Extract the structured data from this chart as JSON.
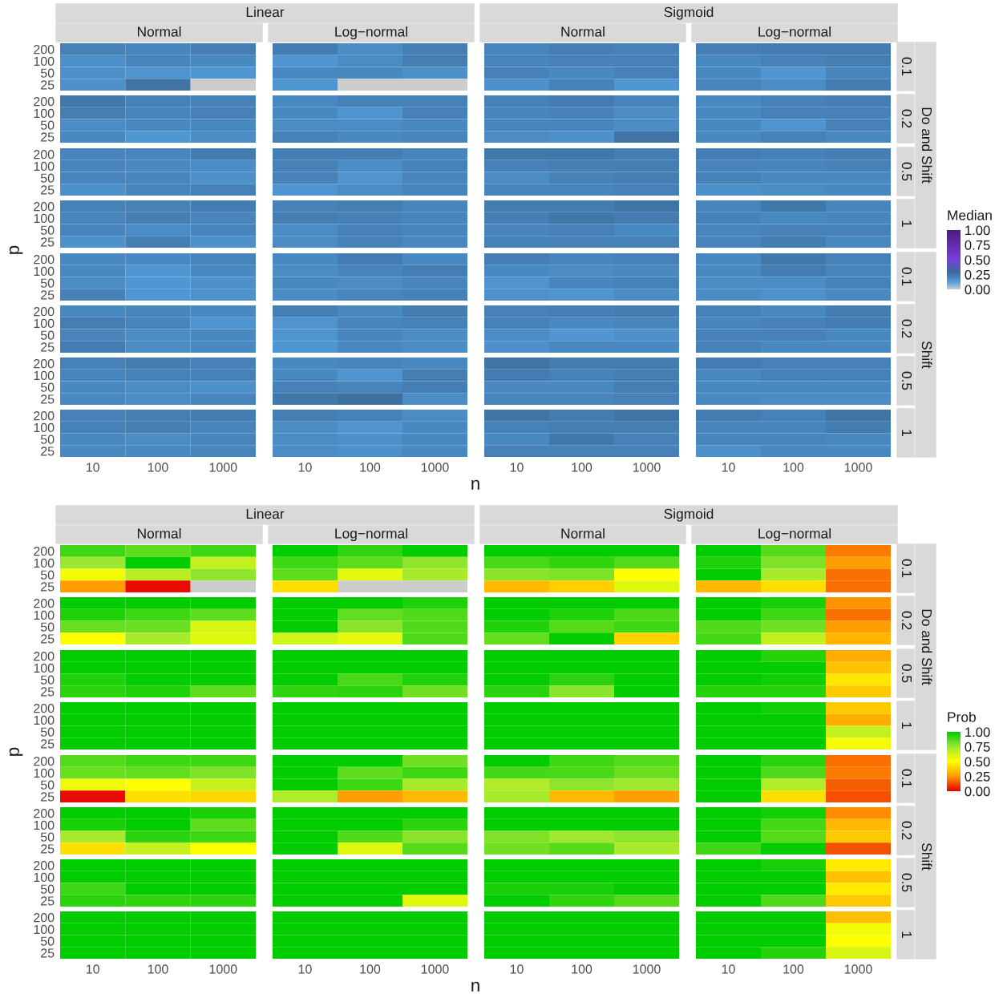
{
  "chart_data": [
    {
      "type": "heatmap",
      "xlabel": "n",
      "ylabel": "p",
      "clabel": "Median",
      "clim": [
        0,
        1
      ],
      "cticks": [
        {
          "value": 0,
          "label": "0.00"
        },
        {
          "value": 0.25,
          "label": "0.25"
        },
        {
          "value": 0.5,
          "label": "0.50"
        },
        {
          "value": 0.75,
          "label": "0.75"
        },
        {
          "value": 1,
          "label": "1.00"
        }
      ],
      "annotations": [
        "Linear",
        "Sigmoid",
        "Normal",
        "Log−normal",
        "Normal",
        "Log−normal",
        "0.1",
        "0.2",
        "0.5",
        "1",
        "0.1",
        "0.2",
        "0.5",
        "1",
        "Do and Shift",
        "Shift"
      ],
      "categories": [
        "10",
        "100",
        "1000",
        "10",
        "100",
        "1000",
        "10",
        "100",
        "1000",
        "10",
        "100",
        "1000"
      ],
      "y_categories": [
        "200",
        "100",
        "50",
        "25",
        "200",
        "100",
        "50",
        "25",
        "200",
        "100",
        "50",
        "25",
        "200",
        "100",
        "50",
        "25",
        "200",
        "100",
        "50",
        "25",
        "200",
        "100",
        "50",
        "25",
        "200",
        "100",
        "50",
        "25",
        "200",
        "100",
        "50",
        "25"
      ],
      "cells": [
        [
          0.21,
          0.2,
          0.22,
          0.23,
          0.18,
          0.22,
          0.2,
          0.22,
          0.21,
          0.22,
          0.23,
          0.23
        ],
        [
          0.17,
          0.2,
          0.19,
          0.15,
          0.18,
          0.22,
          0.2,
          0.21,
          0.21,
          0.19,
          0.21,
          0.22
        ],
        [
          0.17,
          0.16,
          0.15,
          0.19,
          0.19,
          0.17,
          0.21,
          0.19,
          0.21,
          0.19,
          0.15,
          0.2
        ],
        [
          0.17,
          0.25,
          null,
          0.15,
          null,
          null,
          0.17,
          0.21,
          0.15,
          0.2,
          0.18,
          0.23
        ],
        [
          0.24,
          0.21,
          0.21,
          0.19,
          0.21,
          0.21,
          0.21,
          0.23,
          0.2,
          0.19,
          0.21,
          0.22
        ],
        [
          0.22,
          0.2,
          0.21,
          0.19,
          0.16,
          0.21,
          0.2,
          0.21,
          0.18,
          0.19,
          0.21,
          0.21
        ],
        [
          0.18,
          0.19,
          0.19,
          0.18,
          0.18,
          0.19,
          0.2,
          0.2,
          0.18,
          0.19,
          0.16,
          0.21
        ],
        [
          0.19,
          0.15,
          0.18,
          0.21,
          0.19,
          0.2,
          0.18,
          0.17,
          0.25,
          0.19,
          0.21,
          0.19
        ],
        [
          0.2,
          0.2,
          0.23,
          0.22,
          0.22,
          0.2,
          0.24,
          0.24,
          0.22,
          0.22,
          0.21,
          0.22
        ],
        [
          0.2,
          0.19,
          0.18,
          0.21,
          0.18,
          0.21,
          0.21,
          0.22,
          0.22,
          0.2,
          0.2,
          0.21
        ],
        [
          0.2,
          0.2,
          0.17,
          0.21,
          0.16,
          0.2,
          0.18,
          0.21,
          0.22,
          0.21,
          0.19,
          0.19
        ],
        [
          0.17,
          0.2,
          0.21,
          0.16,
          0.18,
          0.2,
          0.2,
          0.2,
          0.21,
          0.17,
          0.18,
          0.19
        ],
        [
          0.21,
          0.21,
          0.23,
          0.21,
          0.22,
          0.2,
          0.23,
          0.23,
          0.25,
          0.2,
          0.24,
          0.2
        ],
        [
          0.2,
          0.22,
          0.2,
          0.22,
          0.21,
          0.2,
          0.22,
          0.24,
          0.23,
          0.21,
          0.19,
          0.2
        ],
        [
          0.2,
          0.18,
          0.2,
          0.18,
          0.21,
          0.2,
          0.2,
          0.21,
          0.19,
          0.2,
          0.21,
          0.21
        ],
        [
          0.17,
          0.22,
          0.17,
          0.18,
          0.21,
          0.19,
          0.21,
          0.21,
          0.21,
          0.2,
          0.23,
          0.19
        ],
        [
          0.19,
          0.19,
          0.2,
          0.19,
          0.23,
          0.19,
          0.22,
          0.2,
          0.21,
          0.19,
          0.24,
          0.21
        ],
        [
          0.19,
          0.15,
          0.19,
          0.18,
          0.2,
          0.22,
          0.19,
          0.18,
          0.19,
          0.19,
          0.23,
          0.2
        ],
        [
          0.18,
          0.15,
          0.17,
          0.19,
          0.18,
          0.2,
          0.16,
          0.2,
          0.21,
          0.18,
          0.18,
          0.21
        ],
        [
          0.21,
          0.15,
          0.17,
          0.18,
          0.2,
          0.21,
          0.17,
          0.16,
          0.18,
          0.18,
          0.17,
          0.19
        ],
        [
          0.19,
          0.2,
          0.19,
          0.22,
          0.19,
          0.23,
          0.21,
          0.22,
          0.23,
          0.21,
          0.19,
          0.23
        ],
        [
          0.22,
          0.2,
          0.16,
          0.16,
          0.2,
          0.21,
          0.21,
          0.19,
          0.2,
          0.2,
          0.21,
          0.23
        ],
        [
          0.2,
          0.18,
          0.19,
          0.16,
          0.2,
          0.18,
          0.18,
          0.15,
          0.17,
          0.21,
          0.21,
          0.19
        ],
        [
          0.23,
          0.18,
          0.19,
          0.15,
          0.19,
          0.18,
          0.17,
          0.19,
          0.19,
          0.21,
          0.19,
          0.19
        ],
        [
          0.21,
          0.23,
          0.21,
          0.19,
          0.2,
          0.19,
          0.25,
          0.23,
          0.23,
          0.23,
          0.21,
          0.21
        ],
        [
          0.2,
          0.21,
          0.21,
          0.19,
          0.16,
          0.22,
          0.23,
          0.21,
          0.22,
          0.19,
          0.21,
          0.21
        ],
        [
          0.19,
          0.18,
          0.17,
          0.21,
          0.2,
          0.22,
          0.19,
          0.19,
          0.22,
          0.19,
          0.19,
          0.19
        ],
        [
          0.19,
          0.18,
          0.2,
          0.24,
          0.26,
          0.18,
          0.2,
          0.2,
          0.21,
          0.19,
          0.18,
          0.18
        ],
        [
          0.21,
          0.22,
          0.23,
          0.22,
          0.21,
          0.18,
          0.25,
          0.23,
          0.25,
          0.23,
          0.21,
          0.25
        ],
        [
          0.21,
          0.22,
          0.2,
          0.18,
          0.16,
          0.19,
          0.21,
          0.22,
          0.22,
          0.2,
          0.2,
          0.23
        ],
        [
          0.19,
          0.18,
          0.2,
          0.18,
          0.17,
          0.19,
          0.19,
          0.24,
          0.21,
          0.2,
          0.2,
          0.19
        ],
        [
          0.19,
          0.19,
          0.2,
          0.18,
          0.17,
          0.19,
          0.21,
          0.21,
          0.21,
          0.17,
          0.19,
          0.19
        ]
      ]
    },
    {
      "type": "heatmap",
      "xlabel": "n",
      "ylabel": "p",
      "clabel": "Prob",
      "clim": [
        0,
        1
      ],
      "cticks": [
        {
          "value": 0,
          "label": "0.00"
        },
        {
          "value": 0.25,
          "label": "0.25"
        },
        {
          "value": 0.5,
          "label": "0.50"
        },
        {
          "value": 0.75,
          "label": "0.75"
        },
        {
          "value": 1,
          "label": "1.00"
        }
      ],
      "annotations": [
        "Linear",
        "Sigmoid",
        "Normal",
        "Log−normal",
        "Normal",
        "Log−normal",
        "0.1",
        "0.2",
        "0.5",
        "1",
        "0.1",
        "0.2",
        "0.5",
        "1",
        "Do and Shift",
        "Shift"
      ],
      "categories": [
        "10",
        "100",
        "1000",
        "10",
        "100",
        "1000",
        "10",
        "100",
        "1000",
        "10",
        "100",
        "1000"
      ],
      "y_categories": [
        "200",
        "100",
        "50",
        "25",
        "200",
        "100",
        "50",
        "25",
        "200",
        "100",
        "50",
        "25",
        "200",
        "100",
        "50",
        "25",
        "200",
        "100",
        "50",
        "25",
        "200",
        "100",
        "50",
        "25",
        "200",
        "100",
        "50",
        "25",
        "200",
        "100",
        "50",
        "25"
      ],
      "cells": [
        [
          0.9,
          0.85,
          0.9,
          1,
          0.92,
          1,
          1,
          1,
          1,
          1,
          0.86,
          0.2
        ],
        [
          0.75,
          1,
          0.65,
          0.9,
          0.85,
          0.77,
          0.88,
          0.92,
          0.86,
          0.95,
          0.8,
          0.26
        ],
        [
          0.53,
          0.68,
          0.77,
          0.85,
          0.57,
          0.72,
          0.78,
          0.8,
          0.5,
          1,
          0.72,
          0.18
        ],
        [
          0.26,
          0.02,
          null,
          0.42,
          null,
          null,
          0.33,
          0.38,
          0.58,
          0.33,
          0.42,
          0.18
        ],
        [
          1,
          1,
          1,
          1,
          1,
          0.95,
          1,
          1,
          1,
          1,
          0.96,
          0.24
        ],
        [
          0.95,
          0.9,
          0.85,
          1,
          0.84,
          0.87,
          1,
          0.95,
          0.88,
          1,
          0.9,
          0.18
        ],
        [
          0.83,
          0.83,
          0.6,
          1,
          0.78,
          0.87,
          0.95,
          0.86,
          0.9,
          0.87,
          0.82,
          0.26
        ],
        [
          0.5,
          0.72,
          0.58,
          0.62,
          0.57,
          0.87,
          0.84,
          1,
          0.38,
          0.89,
          0.66,
          0.32
        ],
        [
          1,
          1,
          1,
          1,
          1,
          1,
          1,
          1,
          1,
          1,
          0.94,
          0.3
        ],
        [
          1,
          1,
          1,
          1,
          1,
          1,
          1,
          1,
          1,
          1,
          1,
          0.35
        ],
        [
          0.95,
          1,
          1,
          1,
          0.88,
          0.95,
          1,
          0.93,
          1,
          1,
          0.97,
          0.44
        ],
        [
          0.93,
          0.95,
          0.85,
          0.92,
          0.93,
          0.82,
          0.93,
          0.78,
          1,
          0.94,
          0.94,
          0.37
        ],
        [
          1,
          1,
          1,
          1,
          1,
          1,
          1,
          1,
          1,
          1,
          0.97,
          0.37
        ],
        [
          1,
          1,
          1,
          1,
          1,
          1,
          1,
          1,
          1,
          1,
          1,
          0.3
        ],
        [
          1,
          1,
          1,
          1,
          1,
          1,
          1,
          1,
          1,
          1,
          1,
          0.65
        ],
        [
          1,
          1,
          1,
          1,
          1,
          1,
          1,
          1,
          1,
          1,
          1,
          0.53
        ],
        [
          0.86,
          0.9,
          0.9,
          1,
          1,
          0.82,
          1,
          0.9,
          0.86,
          1,
          0.93,
          0.18
        ],
        [
          0.83,
          0.84,
          0.8,
          1,
          0.85,
          0.9,
          0.89,
          0.88,
          0.83,
          1,
          0.87,
          0.2
        ],
        [
          0.54,
          0.5,
          0.65,
          1,
          0.9,
          0.72,
          0.7,
          0.77,
          0.74,
          1,
          0.7,
          0.15
        ],
        [
          0.02,
          0.42,
          0.4,
          0.7,
          0.26,
          0.33,
          0.72,
          0.33,
          0.26,
          1,
          0.42,
          0.13
        ],
        [
          1,
          1,
          0.96,
          1,
          1,
          1,
          1,
          1,
          1,
          1,
          0.97,
          0.23
        ],
        [
          0.96,
          1,
          0.85,
          1,
          1,
          0.93,
          1,
          1,
          1,
          1,
          0.89,
          0.33
        ],
        [
          0.72,
          0.93,
          0.9,
          1,
          0.87,
          0.78,
          0.8,
          0.74,
          0.77,
          1,
          0.86,
          0.37
        ],
        [
          0.42,
          0.65,
          0.5,
          1,
          0.58,
          0.86,
          0.82,
          0.86,
          0.72,
          0.9,
          1,
          0.13
        ],
        [
          1,
          1,
          1,
          1,
          1,
          1,
          1,
          1,
          1,
          1,
          0.96,
          0.45
        ],
        [
          1,
          1,
          1,
          1,
          1,
          1,
          1,
          1,
          1,
          1,
          1,
          0.35
        ],
        [
          0.9,
          1,
          1,
          1,
          1,
          1,
          0.96,
          0.96,
          1,
          1,
          1,
          0.45
        ],
        [
          0.93,
          0.92,
          0.93,
          1,
          1,
          0.58,
          1,
          0.92,
          0.86,
          1,
          0.87,
          0.37
        ],
        [
          1,
          1,
          1,
          1,
          1,
          1,
          1,
          1,
          1,
          1,
          1,
          0.34
        ],
        [
          1,
          1,
          1,
          1,
          1,
          1,
          1,
          1,
          1,
          1,
          1,
          0.53
        ],
        [
          1,
          1,
          1,
          1,
          1,
          1,
          1,
          1,
          1,
          1,
          1,
          0.5
        ],
        [
          1,
          1,
          1,
          1,
          1,
          1,
          1,
          1,
          1,
          1,
          0.94,
          0.6
        ]
      ]
    }
  ]
}
